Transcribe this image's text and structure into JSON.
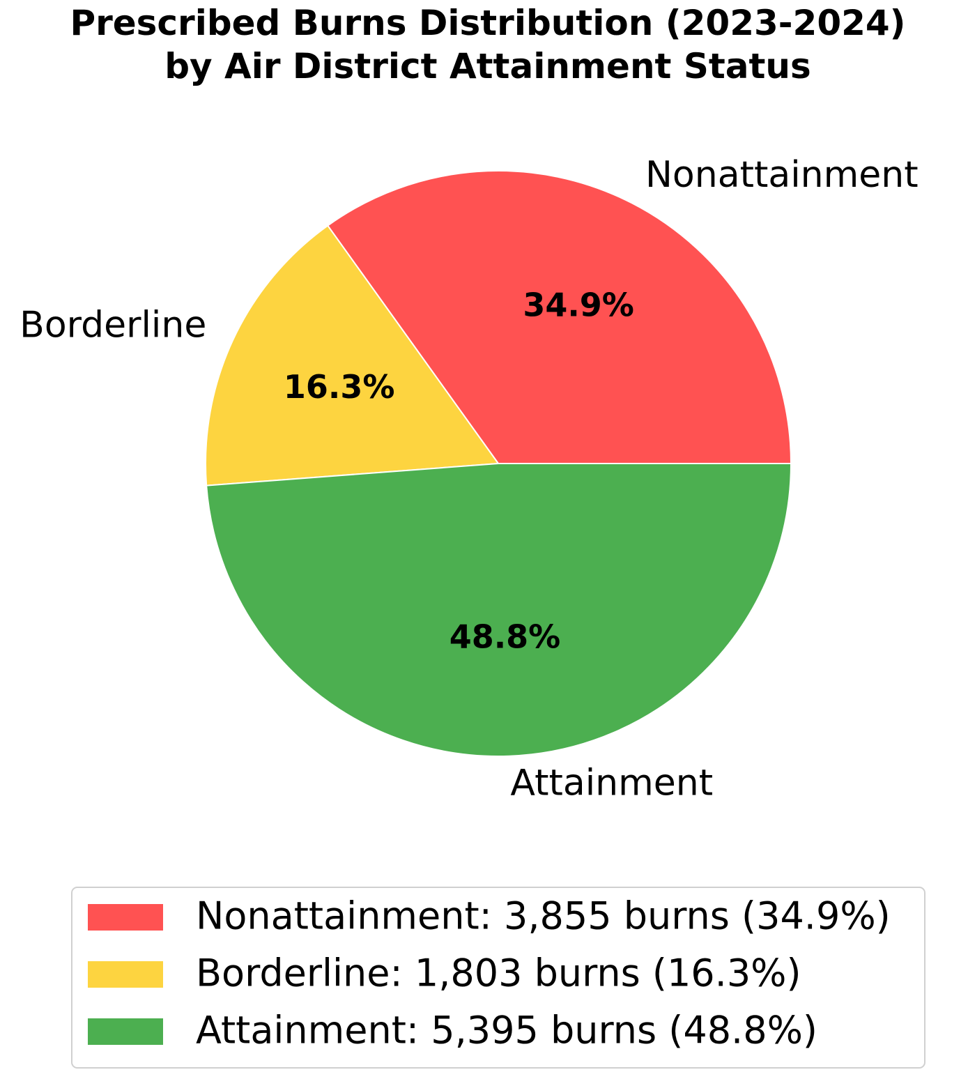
{
  "chart_data": {
    "type": "pie",
    "title": "Prescribed Burns Distribution (2023-2024)\nby Air District Attainment Status",
    "categories": [
      "Nonattainment",
      "Borderline",
      "Attainment"
    ],
    "values": [
      34.9,
      16.3,
      48.8
    ],
    "value_labels": [
      "34.9%",
      "16.3%",
      "48.8%"
    ],
    "colors": [
      "#ff5252",
      "#fdd440",
      "#4caf50"
    ],
    "legend": [
      "Nonattainment: 3,855 burns (34.9%)",
      "Borderline: 1,803 burns (16.3%)",
      "Attainment: 5,395 burns (48.8%)"
    ],
    "legend_position": "bottom"
  }
}
